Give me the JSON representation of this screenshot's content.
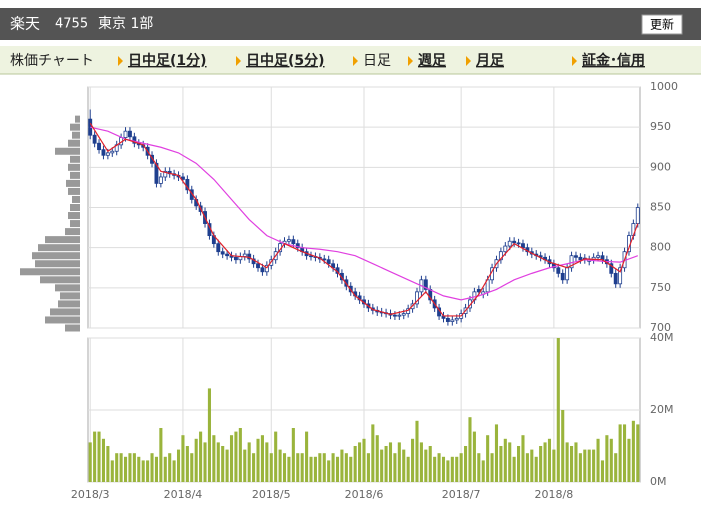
{
  "header": {
    "name": "楽天",
    "code": "4755",
    "market": "東京 1部",
    "button": "更新"
  },
  "nav": {
    "label": "株価チャート",
    "items": [
      "日中足(1分)",
      "日中足(5分)",
      "日足",
      "週足",
      "月足",
      "証金･信用"
    ],
    "links": [
      true,
      true,
      false,
      true,
      true,
      true
    ]
  },
  "chart_data": {
    "type": "candlestick",
    "xlim": [
      -0.5,
      124.5
    ],
    "xticks": [
      {
        "value": 0,
        "label": "2018/3"
      },
      {
        "value": 21,
        "label": "2018/4"
      },
      {
        "value": 41,
        "label": "2018/5"
      },
      {
        "value": 62,
        "label": "2018/6"
      },
      {
        "value": 84,
        "label": "2018/7"
      },
      {
        "value": 105,
        "label": "2018/8"
      }
    ],
    "ylim": [
      700,
      1000
    ],
    "yticks": [
      700,
      750,
      800,
      850,
      900,
      950,
      1000
    ],
    "up_color": "#ffffff",
    "down_color": "#1f3f8f",
    "grid": true,
    "candles": [
      [
        960,
        972,
        935,
        940
      ],
      [
        940,
        945,
        925,
        930
      ],
      [
        930,
        935,
        917,
        922
      ],
      [
        922,
        927,
        910,
        915
      ],
      [
        915,
        923,
        910,
        918
      ],
      [
        918,
        925,
        913,
        920
      ],
      [
        920,
        933,
        915,
        928
      ],
      [
        928,
        942,
        923,
        937
      ],
      [
        937,
        950,
        932,
        945
      ],
      [
        945,
        950,
        933,
        938
      ],
      [
        938,
        943,
        925,
        930
      ],
      [
        930,
        935,
        923,
        928
      ],
      [
        928,
        933,
        920,
        925
      ],
      [
        925,
        930,
        910,
        915
      ],
      [
        915,
        920,
        900,
        905
      ],
      [
        905,
        910,
        875,
        880
      ],
      [
        880,
        893,
        875,
        888
      ],
      [
        888,
        900,
        883,
        895
      ],
      [
        895,
        900,
        887,
        892
      ],
      [
        892,
        897,
        885,
        890
      ],
      [
        890,
        895,
        883,
        888
      ],
      [
        888,
        893,
        880,
        885
      ],
      [
        885,
        890,
        867,
        872
      ],
      [
        872,
        877,
        855,
        860
      ],
      [
        860,
        865,
        847,
        852
      ],
      [
        852,
        857,
        840,
        845
      ],
      [
        845,
        850,
        825,
        830
      ],
      [
        830,
        835,
        810,
        815
      ],
      [
        815,
        820,
        800,
        805
      ],
      [
        805,
        810,
        790,
        795
      ],
      [
        795,
        800,
        787,
        792
      ],
      [
        792,
        797,
        785,
        790
      ],
      [
        790,
        795,
        783,
        788
      ],
      [
        788,
        793,
        780,
        785
      ],
      [
        785,
        794,
        780,
        789
      ],
      [
        789,
        797,
        784,
        792
      ],
      [
        792,
        797,
        781,
        786
      ],
      [
        786,
        791,
        775,
        780
      ],
      [
        780,
        785,
        770,
        775
      ],
      [
        775,
        780,
        765,
        770
      ],
      [
        770,
        783,
        765,
        778
      ],
      [
        778,
        790,
        773,
        785
      ],
      [
        785,
        800,
        780,
        795
      ],
      [
        795,
        810,
        790,
        805
      ],
      [
        805,
        813,
        800,
        808
      ],
      [
        808,
        815,
        803,
        810
      ],
      [
        810,
        815,
        800,
        805
      ],
      [
        805,
        810,
        795,
        800
      ],
      [
        800,
        805,
        790,
        795
      ],
      [
        795,
        800,
        785,
        790
      ],
      [
        790,
        795,
        784,
        789
      ],
      [
        789,
        794,
        783,
        788
      ],
      [
        788,
        793,
        781,
        786
      ],
      [
        786,
        791,
        780,
        785
      ],
      [
        785,
        790,
        775,
        780
      ],
      [
        780,
        785,
        770,
        775
      ],
      [
        775,
        780,
        763,
        768
      ],
      [
        768,
        773,
        755,
        760
      ],
      [
        760,
        765,
        747,
        752
      ],
      [
        752,
        757,
        740,
        745
      ],
      [
        745,
        750,
        735,
        740
      ],
      [
        740,
        745,
        730,
        735
      ],
      [
        735,
        740,
        725,
        730
      ],
      [
        730,
        735,
        720,
        725
      ],
      [
        725,
        730,
        717,
        722
      ],
      [
        722,
        727,
        715,
        720
      ],
      [
        720,
        725,
        714,
        719
      ],
      [
        719,
        724,
        713,
        718
      ],
      [
        718,
        723,
        711,
        716
      ],
      [
        716,
        721,
        710,
        715
      ],
      [
        715,
        721,
        710,
        716
      ],
      [
        716,
        723,
        711,
        718
      ],
      [
        718,
        729,
        713,
        724
      ],
      [
        724,
        735,
        719,
        730
      ],
      [
        730,
        750,
        725,
        745
      ],
      [
        745,
        765,
        740,
        760
      ],
      [
        760,
        765,
        743,
        748
      ],
      [
        748,
        753,
        730,
        735
      ],
      [
        735,
        740,
        720,
        725
      ],
      [
        725,
        730,
        710,
        715
      ],
      [
        715,
        720,
        707,
        712
      ],
      [
        712,
        717,
        703,
        708
      ],
      [
        708,
        715,
        703,
        710
      ],
      [
        710,
        717,
        705,
        712
      ],
      [
        712,
        723,
        707,
        718
      ],
      [
        718,
        730,
        713,
        725
      ],
      [
        725,
        740,
        720,
        735
      ],
      [
        735,
        750,
        730,
        745
      ],
      [
        748,
        753,
        740,
        745
      ],
      [
        742,
        750,
        737,
        745
      ],
      [
        745,
        765,
        740,
        760
      ],
      [
        760,
        780,
        755,
        775
      ],
      [
        775,
        790,
        770,
        785
      ],
      [
        785,
        800,
        780,
        795
      ],
      [
        795,
        807,
        790,
        802
      ],
      [
        802,
        813,
        797,
        808
      ],
      [
        808,
        813,
        801,
        806
      ],
      [
        806,
        811,
        800,
        805
      ],
      [
        805,
        810,
        795,
        800
      ],
      [
        800,
        805,
        790,
        795
      ],
      [
        795,
        800,
        787,
        792
      ],
      [
        792,
        797,
        785,
        790
      ],
      [
        790,
        795,
        783,
        788
      ],
      [
        788,
        793,
        780,
        785
      ],
      [
        785,
        790,
        775,
        780
      ],
      [
        780,
        785,
        770,
        775
      ],
      [
        775,
        780,
        763,
        768
      ],
      [
        768,
        773,
        755,
        760
      ],
      [
        760,
        780,
        755,
        775
      ],
      [
        775,
        795,
        770,
        790
      ],
      [
        790,
        795,
        783,
        788
      ],
      [
        788,
        793,
        780,
        785
      ],
      [
        787,
        792,
        780,
        785
      ],
      [
        783,
        790,
        778,
        785
      ],
      [
        785,
        793,
        780,
        788
      ],
      [
        788,
        795,
        783,
        790
      ],
      [
        790,
        795,
        780,
        785
      ],
      [
        785,
        790,
        775,
        780
      ],
      [
        780,
        785,
        763,
        768
      ],
      [
        768,
        773,
        750,
        755
      ],
      [
        755,
        780,
        750,
        775
      ],
      [
        775,
        800,
        770,
        795
      ],
      [
        795,
        820,
        790,
        815
      ],
      [
        815,
        835,
        810,
        830
      ],
      [
        830,
        855,
        825,
        850
      ]
    ],
    "ma_x": [
      0,
      4,
      8,
      12,
      16,
      20,
      24,
      28,
      32,
      36,
      40,
      44,
      48,
      52,
      56,
      60,
      64,
      68,
      72,
      76,
      80,
      84,
      88,
      92,
      96,
      100,
      104,
      108,
      112,
      116,
      120,
      124
    ],
    "ma_short": {
      "color": "#e0202a",
      "values": [
        955,
        920,
        935,
        928,
        895,
        890,
        860,
        815,
        790,
        788,
        775,
        805,
        795,
        787,
        770,
        740,
        723,
        717,
        722,
        745,
        715,
        715,
        742,
        780,
        805,
        793,
        782,
        775,
        786,
        785,
        770,
        830
      ]
    },
    "ma_long": {
      "color": "#e040e0",
      "values": [
        950,
        945,
        935,
        930,
        925,
        918,
        905,
        885,
        860,
        835,
        815,
        805,
        800,
        798,
        795,
        790,
        780,
        770,
        760,
        750,
        740,
        735,
        740,
        748,
        760,
        768,
        775,
        780,
        785,
        783,
        782,
        790
      ]
    },
    "volume": {
      "color": "#9ab43c",
      "ylim": [
        0,
        40
      ],
      "yticks": [
        {
          "value": 0,
          "label": "0M"
        },
        {
          "value": 20,
          "label": "20M"
        },
        {
          "value": 40,
          "label": "40M"
        }
      ],
      "values": [
        11,
        14,
        14,
        12,
        10,
        6,
        8,
        8,
        7,
        8,
        8,
        7,
        6,
        6,
        8,
        7,
        15,
        7,
        8,
        6,
        9,
        13,
        10,
        8,
        12,
        14,
        11,
        26,
        13,
        11,
        10,
        9,
        13,
        14,
        15,
        9,
        11,
        8,
        12,
        13,
        11,
        8,
        14,
        9,
        8,
        7,
        15,
        8,
        8,
        14,
        7,
        7,
        8,
        8,
        6,
        8,
        7,
        9,
        8,
        7,
        10,
        11,
        12,
        8,
        16,
        13,
        9,
        10,
        11,
        8,
        11,
        9,
        7,
        12,
        17,
        11,
        9,
        10,
        7,
        8,
        7,
        6,
        7,
        7,
        8,
        10,
        18,
        14,
        8,
        6,
        13,
        8,
        16,
        10,
        12,
        11,
        7,
        10,
        13,
        8,
        9,
        7,
        10,
        11,
        12,
        9,
        40,
        20,
        11,
        10,
        11,
        8,
        9,
        9,
        9,
        12,
        6,
        13,
        12,
        8,
        16,
        16,
        12,
        17,
        16
      ]
    },
    "volume_by_price": {
      "color": "#999999",
      "levels": [
        700,
        710,
        720,
        730,
        740,
        750,
        760,
        770,
        780,
        790,
        800,
        810,
        820,
        830,
        840,
        850,
        860,
        870,
        880,
        890,
        900,
        910,
        920,
        930,
        940,
        950,
        960
      ],
      "values": [
        15,
        35,
        30,
        22,
        20,
        25,
        40,
        60,
        45,
        48,
        42,
        35,
        15,
        10,
        12,
        10,
        8,
        12,
        14,
        10,
        12,
        10,
        25,
        12,
        8,
        10,
        5
      ]
    }
  }
}
